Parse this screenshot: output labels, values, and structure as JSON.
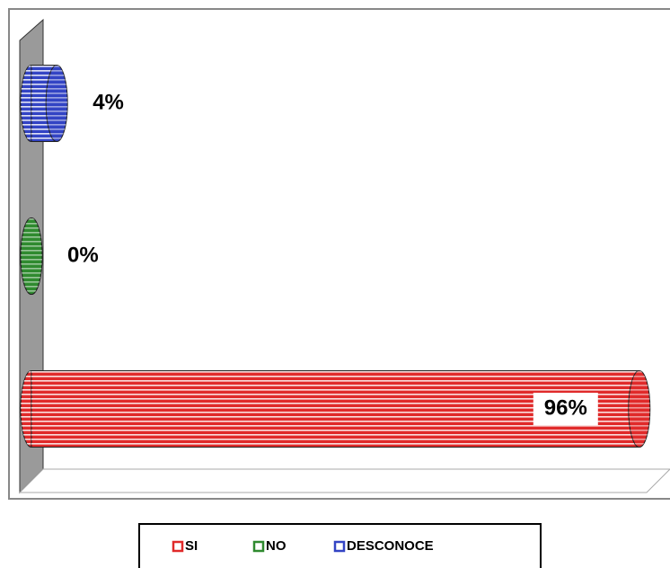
{
  "chart_data": {
    "type": "bar",
    "orientation": "horizontal",
    "series": [
      {
        "name": "SI",
        "color": "#e02a2a",
        "values": [
          96
        ],
        "value_labels": [
          "96%"
        ]
      },
      {
        "name": "NO",
        "color": "#2f8a2f",
        "values": [
          0
        ],
        "value_labels": [
          "0%"
        ]
      },
      {
        "name": "DESCONOCE",
        "color": "#3344c4",
        "values": [
          4
        ],
        "value_labels": [
          "4%"
        ]
      }
    ],
    "xlim": [
      0,
      100
    ]
  }
}
